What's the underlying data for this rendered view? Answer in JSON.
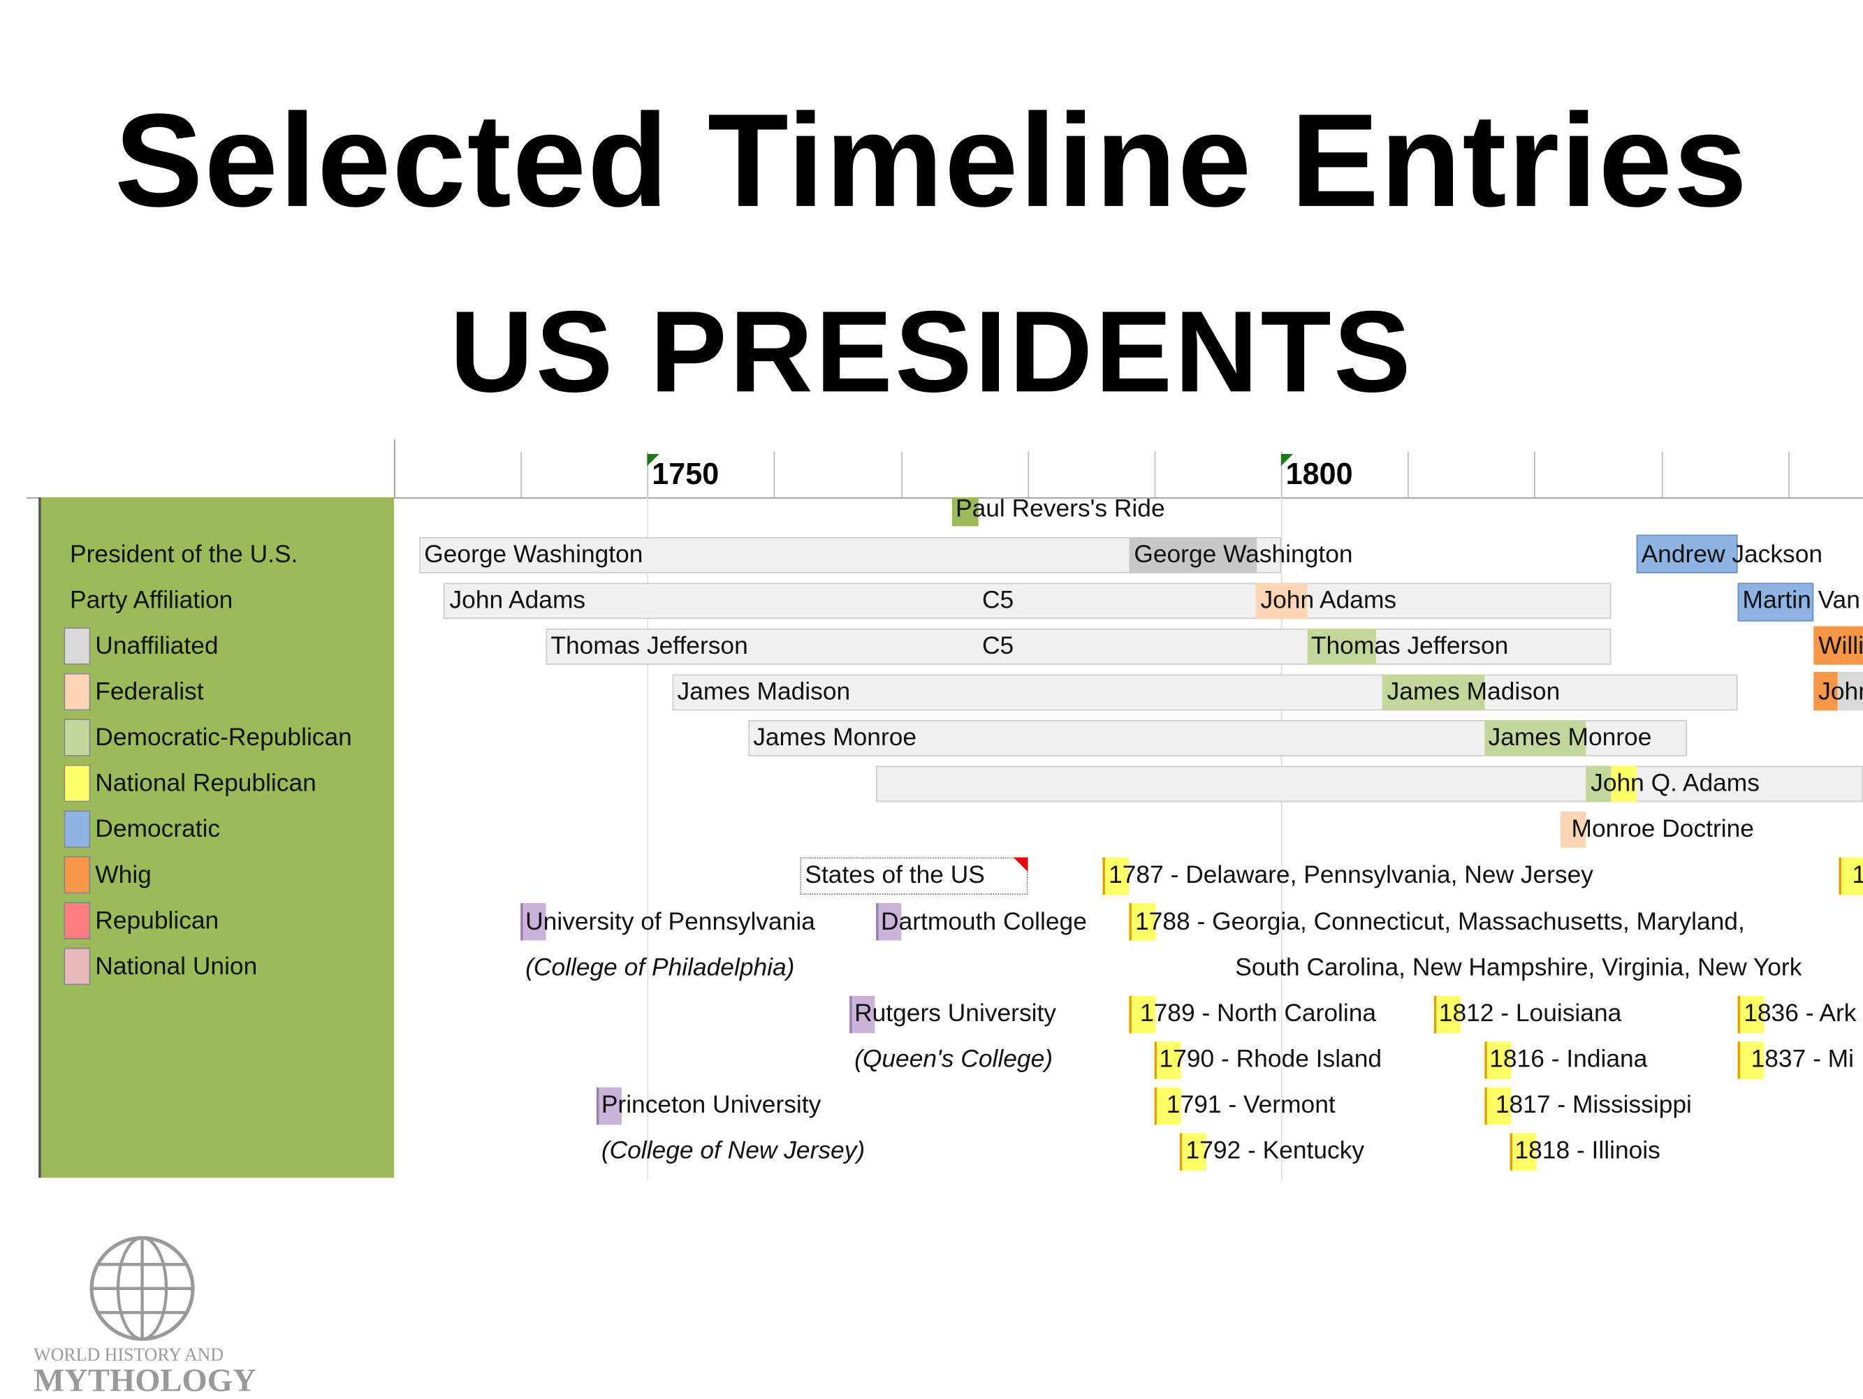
{
  "header": {
    "title": "Selected Timeline Entries",
    "subtitle": "US PRESIDENTS"
  },
  "legend": {
    "heading": "President of the U.S.",
    "subheading": "Party Affiliation",
    "items": [
      {
        "label": "Unaffiliated",
        "color": "#d9d9d9"
      },
      {
        "label": "Federalist",
        "color": "#fcd5b4"
      },
      {
        "label": "Democratic-Republican",
        "color": "#c4d79b"
      },
      {
        "label": "National Republican",
        "color": "#ffff66"
      },
      {
        "label": "Democratic",
        "color": "#8db4e2"
      },
      {
        "label": "Whig",
        "color": "#f79646"
      },
      {
        "label": "Republican",
        "color": "#ff7c80"
      },
      {
        "label": "National Union",
        "color": "#e6b8b7"
      }
    ]
  },
  "timeline": {
    "axis_labels": [
      "1750",
      "1800"
    ],
    "entries": [
      "Paul Revers's Ride",
      "George Washington",
      "George Washington",
      "Andrew Jackson",
      "John Adams",
      "C5",
      "John Adams",
      "Martin Van",
      "Thomas Jefferson",
      "C5",
      "Thomas Jefferson",
      "Willi",
      "James Madison",
      "James Madison",
      "John",
      "James Monroe",
      "James Monroe",
      "John Q. Adams",
      "Monroe Doctrine",
      "States of the US",
      "1787 - Delaware, Pennsylvania, New Jersey",
      "1",
      "University of Pennsylvania",
      "(College of Philadelphia)",
      "Dartmouth College",
      "1788 - Georgia, Connecticut, Massachusetts, Maryland,",
      "South Carolina, New Hampshire, Virginia, New York",
      "Rutgers University",
      "(Queen's College)",
      "1789 - North Carolina",
      "1812 - Louisiana",
      "1836 - Ark",
      "1790 - Rhode Island",
      "1816 - Indiana",
      "1837 - Mi",
      "Princeton University",
      "(College of New Jersey)",
      "1791 - Vermont",
      "1817 - Mississippi",
      "1792 - Kentucky",
      "1818 - Illinois"
    ]
  },
  "logo": {
    "line1": "WORLD HISTORY AND",
    "line2": "MYTHOLOGY"
  }
}
